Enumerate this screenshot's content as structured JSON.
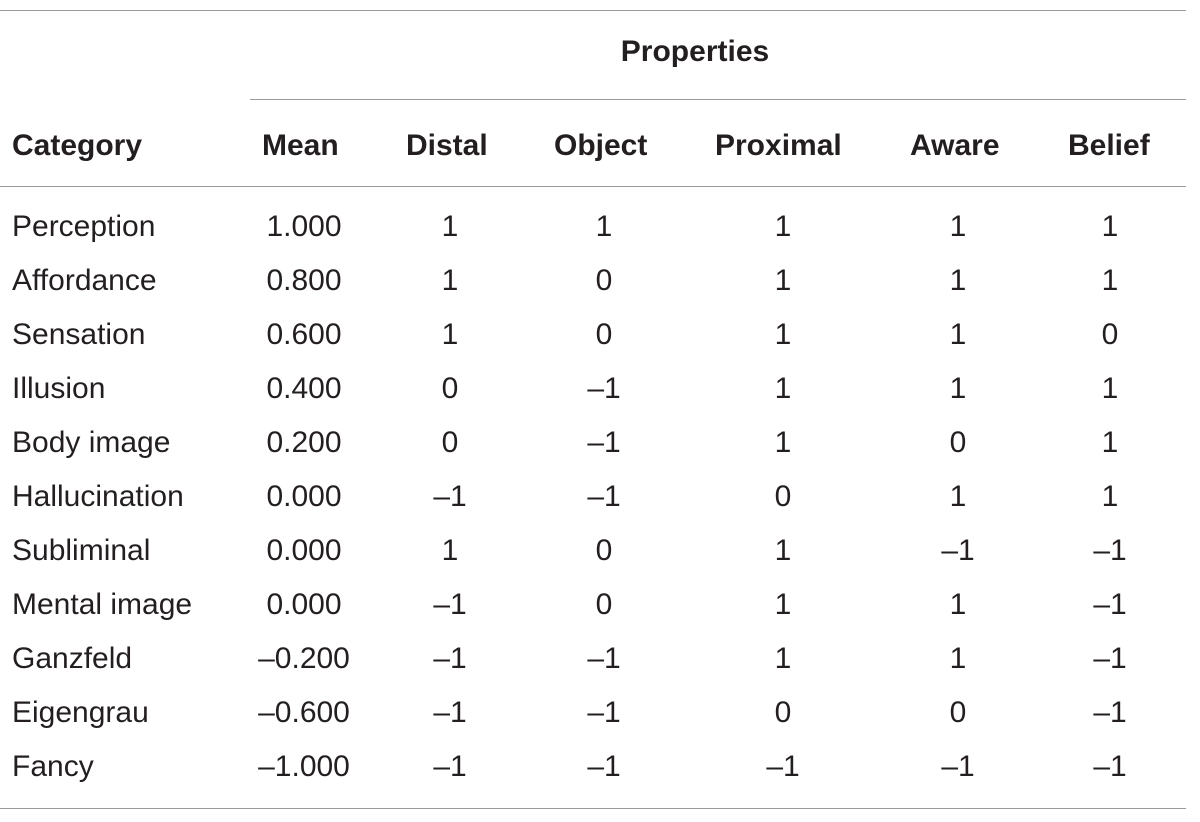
{
  "table": {
    "group_header": "Properties",
    "columns": [
      "Category",
      "Mean",
      "Distal",
      "Object",
      "Proximal",
      "Aware",
      "Belief"
    ],
    "rows": [
      {
        "category": "Perception",
        "mean": "1.000",
        "distal": "1",
        "object": "1",
        "proximal": "1",
        "aware": "1",
        "belief": "1"
      },
      {
        "category": "Affordance",
        "mean": "0.800",
        "distal": "1",
        "object": "0",
        "proximal": "1",
        "aware": "1",
        "belief": "1"
      },
      {
        "category": "Sensation",
        "mean": "0.600",
        "distal": "1",
        "object": "0",
        "proximal": "1",
        "aware": "1",
        "belief": "0"
      },
      {
        "category": "Illusion",
        "mean": "0.400",
        "distal": "0",
        "object": "–1",
        "proximal": "1",
        "aware": "1",
        "belief": "1"
      },
      {
        "category": "Body image",
        "mean": "0.200",
        "distal": "0",
        "object": "–1",
        "proximal": "1",
        "aware": "0",
        "belief": "1"
      },
      {
        "category": "Hallucination",
        "mean": "0.000",
        "distal": "–1",
        "object": "–1",
        "proximal": "0",
        "aware": "1",
        "belief": "1"
      },
      {
        "category": "Subliminal",
        "mean": "0.000",
        "distal": "1",
        "object": "0",
        "proximal": "1",
        "aware": "–1",
        "belief": "–1"
      },
      {
        "category": "Mental image",
        "mean": "0.000",
        "distal": "–1",
        "object": "0",
        "proximal": "1",
        "aware": "1",
        "belief": "–1"
      },
      {
        "category": "Ganzfeld",
        "mean": "–0.200",
        "distal": "–1",
        "object": "–1",
        "proximal": "1",
        "aware": "1",
        "belief": "–1"
      },
      {
        "category": "Eigengrau",
        "mean": "–0.600",
        "distal": "–1",
        "object": "–1",
        "proximal": "0",
        "aware": "0",
        "belief": "–1"
      },
      {
        "category": "Fancy",
        "mean": "–1.000",
        "distal": "–1",
        "object": "–1",
        "proximal": "–1",
        "aware": "–1",
        "belief": "–1"
      }
    ]
  }
}
